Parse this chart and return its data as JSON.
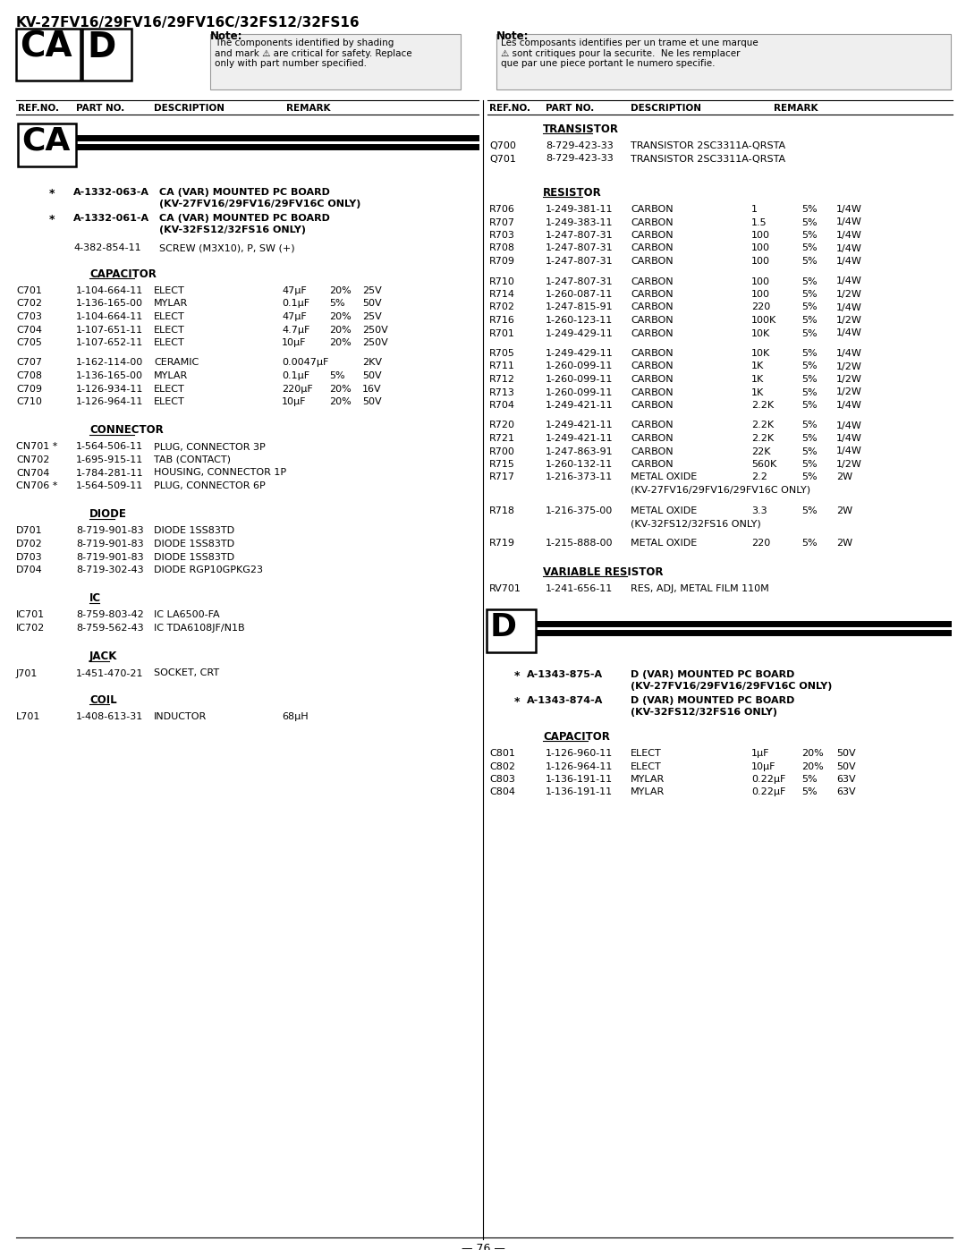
{
  "title": "KV-27FV16/29FV16/29FV16C/32FS12/32FS16",
  "page_num": "76",
  "header_note_en": "The components identified by shading\nand mark ⚠ are critical for safety. Replace\nonly with part number specified.",
  "header_note_fr": "Les composants identifies per un trame et une marque\n⚠ sont critiques pour la securite.  Ne les remplacer\nque par une piece portant le numero specifie."
}
